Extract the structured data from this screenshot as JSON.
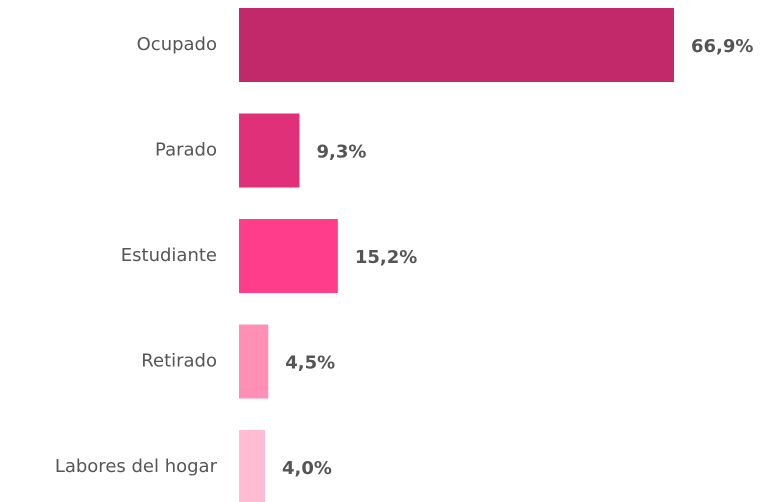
{
  "chart_data": {
    "type": "hbar",
    "categories": [
      "Ocupado",
      "Parado",
      "Estudiante",
      "Retirado",
      "Labores del hogar"
    ],
    "values": [
      66.9,
      9.3,
      15.2,
      4.5,
      4.0
    ],
    "value_labels": [
      "66,9%",
      "9,3%",
      "15,2%",
      "4,5%",
      "4,0%"
    ],
    "colors": [
      "#c2296a",
      "#e0307a",
      "#ff3d8b",
      "#ff8fb4",
      "#ffbcd2"
    ]
  }
}
